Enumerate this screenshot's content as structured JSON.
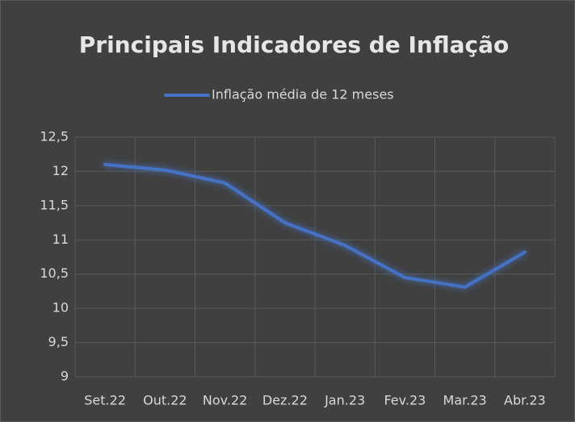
{
  "chart_data": {
    "type": "line",
    "title": "Principais Indicadores de Inflação",
    "categories": [
      "Set.22",
      "Out.22",
      "Nov.22",
      "Dez.22",
      "Jan.23",
      "Fev.23",
      "Mar.23",
      "Abr.23"
    ],
    "series": [
      {
        "name": "Inflação média de 12 meses",
        "color": "#4472c4",
        "values": [
          12.1,
          12.02,
          11.83,
          11.25,
          10.92,
          10.45,
          10.31,
          10.82
        ]
      }
    ],
    "ylim": [
      9,
      12.5
    ],
    "yticks": [
      9,
      {
        "value": 9.5,
        "label": "9,5"
      },
      10,
      {
        "value": 10.5,
        "label": "10,5"
      },
      11,
      {
        "value": 11.5,
        "label": "11,5"
      },
      12,
      {
        "value": 12.5,
        "label": "12,5"
      }
    ],
    "grid": true,
    "legend": "top"
  }
}
